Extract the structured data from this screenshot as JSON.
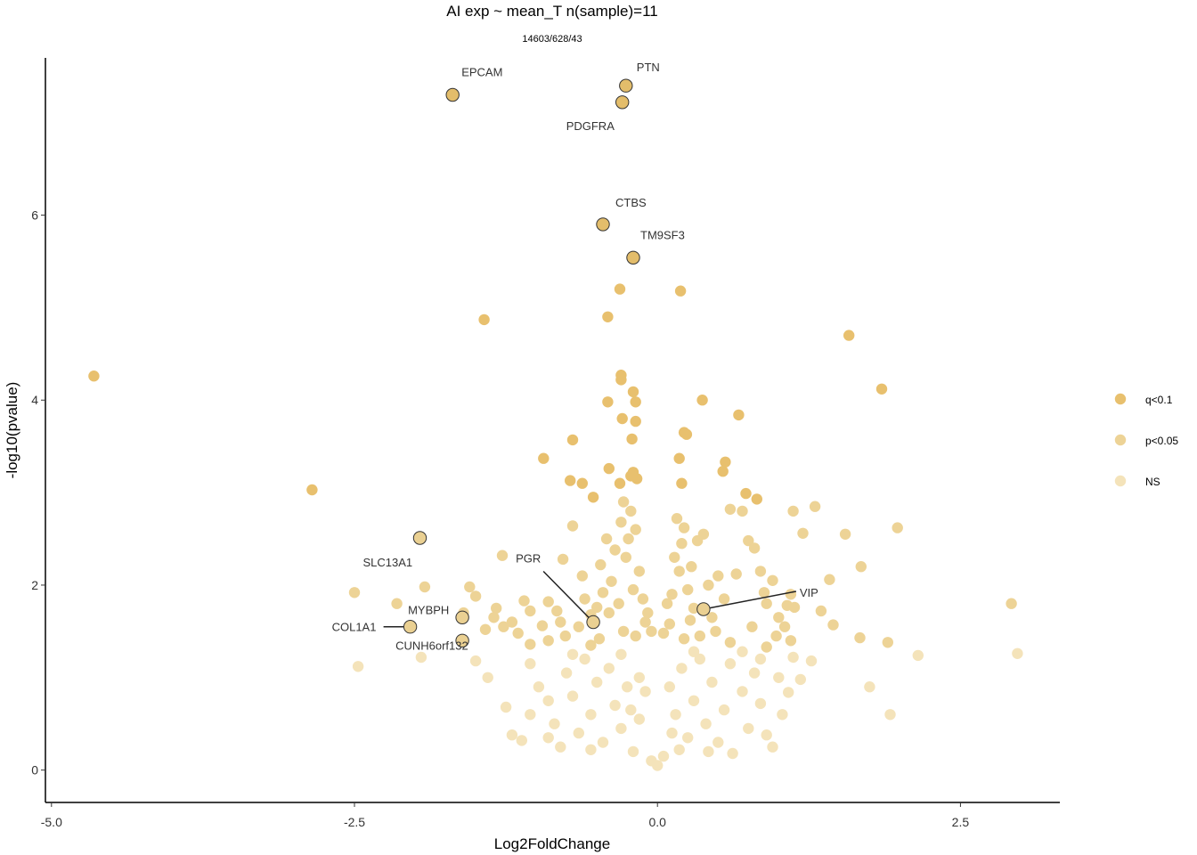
{
  "chart_data": {
    "type": "scatter",
    "title": "AI exp ~ mean_T n(sample)=11",
    "subtitle": "14603/628/43",
    "xlabel": "Log2FoldChange",
    "ylabel": "-log10(pvalue)",
    "xlim": [
      -5.05,
      3.32
    ],
    "ylim": [
      -0.35,
      7.7
    ],
    "x_ticks": [
      -5.0,
      -2.5,
      0.0,
      2.5
    ],
    "x_tick_labels": [
      "-5.0",
      "-2.5",
      "0.0",
      "2.5"
    ],
    "y_ticks": [
      0,
      2,
      4,
      6
    ],
    "y_tick_labels": [
      "0",
      "2",
      "4",
      "6"
    ],
    "grid": false,
    "legend_position": "right",
    "legend": [
      {
        "name": "q<0.1",
        "color": "#E8C06E"
      },
      {
        "name": "p<0.05",
        "color": "#EDD396"
      },
      {
        "name": "NS",
        "color": "#F4E3BA"
      }
    ],
    "colors": {
      "q": "#E8C06E",
      "p": "#EDD396",
      "ns": "#F4E3BA",
      "highlight_q": "#E3BD6B",
      "highlight_p": "#EAD092"
    },
    "series": [
      {
        "name": "q<0.1",
        "points": [
          [
            -4.65,
            4.26
          ],
          [
            -2.85,
            3.03
          ],
          [
            -1.43,
            4.87
          ],
          [
            -0.7,
            3.57
          ],
          [
            -0.72,
            3.13
          ],
          [
            -0.94,
            3.37
          ],
          [
            -0.62,
            3.1
          ],
          [
            -0.53,
            2.95
          ],
          [
            -0.4,
            3.26
          ],
          [
            -0.31,
            3.1
          ],
          [
            -0.29,
            3.8
          ],
          [
            -0.3,
            4.27
          ],
          [
            -0.3,
            4.22
          ],
          [
            -0.41,
            3.98
          ],
          [
            -0.2,
            4.09
          ],
          [
            -0.18,
            3.98
          ],
          [
            -0.21,
            3.58
          ],
          [
            -0.18,
            3.77
          ],
          [
            -0.2,
            3.22
          ],
          [
            -0.22,
            3.18
          ],
          [
            -0.17,
            3.15
          ],
          [
            -0.31,
            5.2
          ],
          [
            -0.41,
            4.9
          ],
          [
            0.19,
            5.18
          ],
          [
            0.37,
            4.0
          ],
          [
            0.22,
            3.65
          ],
          [
            0.24,
            3.63
          ],
          [
            0.18,
            3.37
          ],
          [
            0.2,
            3.1
          ],
          [
            0.56,
            3.33
          ],
          [
            0.54,
            3.23
          ],
          [
            0.67,
            3.84
          ],
          [
            0.73,
            2.99
          ],
          [
            0.82,
            2.93
          ],
          [
            1.58,
            4.7
          ],
          [
            1.85,
            4.12
          ]
        ]
      },
      {
        "name": "p<0.05",
        "points": [
          [
            -2.5,
            1.92
          ],
          [
            -2.15,
            1.8
          ],
          [
            -1.92,
            1.98
          ],
          [
            -1.55,
            1.98
          ],
          [
            -1.5,
            1.88
          ],
          [
            -1.42,
            1.52
          ],
          [
            -1.33,
            1.75
          ],
          [
            -1.28,
            2.32
          ],
          [
            -1.27,
            1.55
          ],
          [
            -1.2,
            1.6
          ],
          [
            -1.15,
            1.48
          ],
          [
            -1.1,
            1.83
          ],
          [
            -1.05,
            1.72
          ],
          [
            -0.95,
            1.56
          ],
          [
            -0.9,
            1.82
          ],
          [
            -0.83,
            1.72
          ],
          [
            -0.76,
            1.45
          ],
          [
            -0.9,
            1.4
          ],
          [
            -0.7,
            2.64
          ],
          [
            -0.78,
            2.28
          ],
          [
            -0.62,
            2.1
          ],
          [
            -0.6,
            1.85
          ],
          [
            -0.55,
            1.68
          ],
          [
            -0.5,
            1.76
          ],
          [
            -0.47,
            2.22
          ],
          [
            -0.45,
            1.92
          ],
          [
            -0.42,
            2.5
          ],
          [
            -0.38,
            2.04
          ],
          [
            -0.35,
            2.38
          ],
          [
            -0.32,
            1.8
          ],
          [
            -0.3,
            2.68
          ],
          [
            -0.28,
            2.9
          ],
          [
            -0.26,
            2.3
          ],
          [
            -0.24,
            2.5
          ],
          [
            -0.22,
            2.8
          ],
          [
            -0.2,
            1.95
          ],
          [
            -0.18,
            2.6
          ],
          [
            -0.15,
            2.15
          ],
          [
            -0.12,
            1.85
          ],
          [
            -0.1,
            1.6
          ],
          [
            0.1,
            1.58
          ],
          [
            0.12,
            1.9
          ],
          [
            0.14,
            2.3
          ],
          [
            0.16,
            2.72
          ],
          [
            0.18,
            2.15
          ],
          [
            0.2,
            2.45
          ],
          [
            0.22,
            2.62
          ],
          [
            0.25,
            1.95
          ],
          [
            0.28,
            2.2
          ],
          [
            0.3,
            1.75
          ],
          [
            0.33,
            2.48
          ],
          [
            0.38,
            2.55
          ],
          [
            0.42,
            2.0
          ],
          [
            0.45,
            1.65
          ],
          [
            0.5,
            2.1
          ],
          [
            0.55,
            1.85
          ],
          [
            0.6,
            2.82
          ],
          [
            0.65,
            2.12
          ],
          [
            0.7,
            2.8
          ],
          [
            0.75,
            2.48
          ],
          [
            0.8,
            2.4
          ],
          [
            0.85,
            2.15
          ],
          [
            0.88,
            1.92
          ],
          [
            0.9,
            1.8
          ],
          [
            0.95,
            2.05
          ],
          [
            1.0,
            1.65
          ],
          [
            1.05,
            1.55
          ],
          [
            1.1,
            1.4
          ],
          [
            1.12,
            2.8
          ],
          [
            1.2,
            2.56
          ],
          [
            1.3,
            2.85
          ],
          [
            1.35,
            1.72
          ],
          [
            1.42,
            2.06
          ],
          [
            1.45,
            1.57
          ],
          [
            1.55,
            2.55
          ],
          [
            1.68,
            2.2
          ],
          [
            1.67,
            1.43
          ],
          [
            1.9,
            1.38
          ],
          [
            1.98,
            2.62
          ],
          [
            2.92,
            1.8
          ],
          [
            -1.05,
            1.36
          ],
          [
            0.6,
            1.38
          ],
          [
            0.9,
            1.33
          ],
          [
            0.98,
            1.45
          ],
          [
            1.07,
            1.78
          ],
          [
            1.1,
            1.9
          ],
          [
            1.13,
            1.76
          ],
          [
            0.78,
            1.55
          ],
          [
            -0.65,
            1.55
          ],
          [
            -0.55,
            1.35
          ],
          [
            -0.48,
            1.42
          ],
          [
            -1.35,
            1.65
          ],
          [
            -1.6,
            1.7
          ],
          [
            -0.8,
            1.6
          ],
          [
            -0.4,
            1.7
          ],
          [
            0.35,
            1.45
          ],
          [
            0.48,
            1.5
          ],
          [
            -0.28,
            1.5
          ],
          [
            -0.18,
            1.45
          ],
          [
            0.22,
            1.42
          ],
          [
            0.27,
            1.62
          ],
          [
            -0.08,
            1.7
          ],
          [
            0.08,
            1.8
          ],
          [
            -0.05,
            1.5
          ],
          [
            0.05,
            1.48
          ]
        ]
      },
      {
        "name": "NS",
        "points": [
          [
            -2.47,
            1.12
          ],
          [
            -1.95,
            1.22
          ],
          [
            -1.5,
            1.18
          ],
          [
            -1.4,
            1.0
          ],
          [
            -1.25,
            0.68
          ],
          [
            -1.2,
            0.38
          ],
          [
            -1.12,
            0.32
          ],
          [
            -1.05,
            0.6
          ],
          [
            -0.98,
            0.9
          ],
          [
            -0.9,
            0.75
          ],
          [
            -0.85,
            0.5
          ],
          [
            -0.8,
            0.25
          ],
          [
            -0.75,
            1.05
          ],
          [
            -0.7,
            0.8
          ],
          [
            -0.65,
            0.4
          ],
          [
            -0.6,
            1.2
          ],
          [
            -0.55,
            0.6
          ],
          [
            -0.5,
            0.95
          ],
          [
            -0.45,
            0.3
          ],
          [
            -0.4,
            1.1
          ],
          [
            -0.35,
            0.7
          ],
          [
            -0.3,
            0.45
          ],
          [
            -0.25,
            0.9
          ],
          [
            -0.2,
            0.2
          ],
          [
            -0.15,
            0.55
          ],
          [
            -0.1,
            0.85
          ],
          [
            -0.05,
            0.1
          ],
          [
            0.0,
            0.05
          ],
          [
            0.05,
            0.15
          ],
          [
            0.1,
            0.9
          ],
          [
            0.15,
            0.6
          ],
          [
            0.2,
            1.1
          ],
          [
            0.25,
            0.35
          ],
          [
            0.3,
            0.75
          ],
          [
            0.35,
            1.2
          ],
          [
            0.4,
            0.5
          ],
          [
            0.45,
            0.95
          ],
          [
            0.5,
            0.3
          ],
          [
            0.55,
            0.65
          ],
          [
            0.6,
            1.15
          ],
          [
            0.62,
            0.18
          ],
          [
            0.7,
            0.85
          ],
          [
            0.75,
            0.45
          ],
          [
            0.8,
            1.05
          ],
          [
            0.85,
            0.72
          ],
          [
            0.9,
            0.38
          ],
          [
            0.95,
            0.25
          ],
          [
            1.0,
            1.0
          ],
          [
            1.03,
            0.6
          ],
          [
            1.08,
            0.84
          ],
          [
            1.12,
            1.22
          ],
          [
            1.18,
            0.98
          ],
          [
            1.27,
            1.18
          ],
          [
            1.75,
            0.9
          ],
          [
            1.92,
            0.6
          ],
          [
            2.15,
            1.24
          ],
          [
            2.97,
            1.26
          ],
          [
            -0.9,
            0.35
          ],
          [
            -0.7,
            1.25
          ],
          [
            -0.3,
            1.25
          ],
          [
            0.3,
            1.28
          ],
          [
            0.7,
            1.28
          ],
          [
            -0.15,
            1.0
          ],
          [
            0.12,
            0.4
          ],
          [
            0.18,
            0.22
          ],
          [
            -0.22,
            0.65
          ],
          [
            0.42,
            0.2
          ],
          [
            -0.55,
            0.22
          ],
          [
            0.85,
            1.2
          ],
          [
            -1.05,
            1.15
          ]
        ]
      }
    ],
    "highlighted": [
      {
        "label": "EPCAM",
        "x": -1.69,
        "y": 7.3,
        "group": "q<0.1"
      },
      {
        "label": "PTN",
        "x": -0.26,
        "y": 7.4,
        "group": "q<0.1"
      },
      {
        "label": "PDGFRA",
        "x": -0.29,
        "y": 7.22,
        "group": "q<0.1"
      },
      {
        "label": "CTBS",
        "x": -0.45,
        "y": 5.9,
        "group": "q<0.1"
      },
      {
        "label": "TM9SF3",
        "x": -0.2,
        "y": 5.54,
        "group": "q<0.1"
      },
      {
        "label": "SLC13A1",
        "x": -1.96,
        "y": 2.51,
        "group": "p<0.05"
      },
      {
        "label": "PGR",
        "x": -0.53,
        "y": 1.6,
        "group": "p<0.05"
      },
      {
        "label": "VIP",
        "x": 0.38,
        "y": 1.74,
        "group": "p<0.05"
      },
      {
        "label": "MYBPH",
        "x": -1.61,
        "y": 1.65,
        "group": "p<0.05"
      },
      {
        "label": "COL1A1",
        "x": -2.04,
        "y": 1.55,
        "group": "p<0.05"
      },
      {
        "label": "CUNH6orf132",
        "x": -1.61,
        "y": 1.4,
        "group": "p<0.05"
      }
    ]
  }
}
